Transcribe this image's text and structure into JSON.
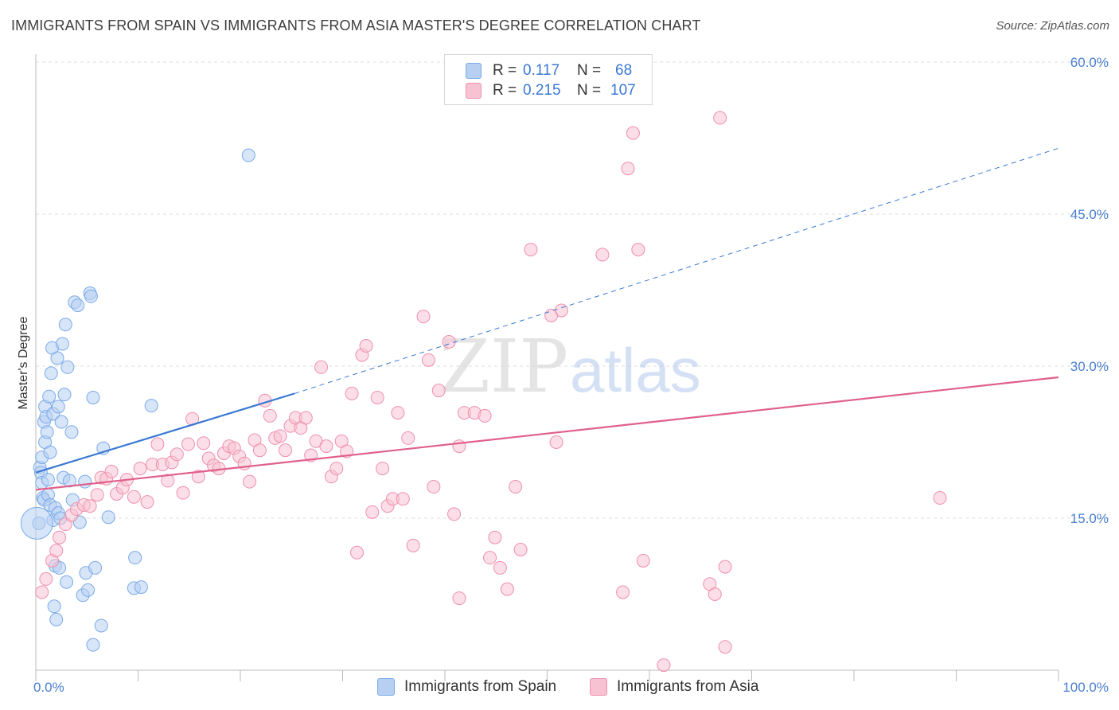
{
  "header": {
    "title": "IMMIGRANTS FROM SPAIN VS IMMIGRANTS FROM ASIA MASTER'S DEGREE CORRELATION CHART",
    "source": "Source: ZipAtlas.com"
  },
  "watermark": {
    "zip": "ZIP",
    "atlas": "atlas"
  },
  "legend": {
    "rows": [
      {
        "r_label": "R =",
        "r_value": "0.117",
        "n_label": "N =",
        "n_value": "68",
        "color": "#7aaae8",
        "fill": "#b7d0f2"
      },
      {
        "r_label": "R =",
        "r_value": "0.215",
        "n_label": "N =",
        "n_value": "107",
        "color": "#ee90ac",
        "fill": "#f7c3d3"
      }
    ]
  },
  "bottom_legend": {
    "items": [
      {
        "label": "Immigrants from Spain",
        "color": "#7aaae8",
        "fill": "#b7d0f2"
      },
      {
        "label": "Immigrants from Asia",
        "color": "#ee90ac",
        "fill": "#f7c3d3"
      }
    ]
  },
  "chart_data": {
    "type": "scatter",
    "title": "IMMIGRANTS FROM SPAIN VS IMMIGRANTS FROM ASIA MASTER'S DEGREE CORRELATION CHART",
    "xlabel": "",
    "ylabel": "Master's Degree",
    "xlim": [
      0,
      100
    ],
    "ylim": [
      0,
      60
    ],
    "x_tick_labels": [
      "0.0%",
      "100.0%"
    ],
    "y_ticks": [
      15,
      30,
      45,
      60
    ],
    "y_tick_labels": [
      "15.0%",
      "30.0%",
      "45.0%",
      "60.0%"
    ],
    "grid": true,
    "series": [
      {
        "name": "Immigrants from Spain",
        "color": "#3a78d4",
        "fill": "#b7d0f2",
        "r": 0.117,
        "n": 68,
        "trend": {
          "x0": 0,
          "y0": 19.5,
          "x1": 25.3,
          "y1": 27.3,
          "dash_to_x": 100,
          "dash_to_y": 51.5
        },
        "points": [
          [
            0.3,
            14.5
          ],
          [
            0.4,
            20
          ],
          [
            0.5,
            19.5
          ],
          [
            0.6,
            21
          ],
          [
            0.6,
            18.5
          ],
          [
            0.7,
            17
          ],
          [
            0.8,
            16.8
          ],
          [
            0.8,
            24.5
          ],
          [
            0.9,
            26
          ],
          [
            0.9,
            22.5
          ],
          [
            1,
            25
          ],
          [
            1.1,
            23.5
          ],
          [
            1.2,
            17.3
          ],
          [
            1.2,
            18.8
          ],
          [
            1.3,
            27
          ],
          [
            1.4,
            21.5
          ],
          [
            1.4,
            16.3
          ],
          [
            1.5,
            29.3
          ],
          [
            1.6,
            31.8
          ],
          [
            1.7,
            25.3
          ],
          [
            1.7,
            14.8
          ],
          [
            1.8,
            6.3
          ],
          [
            1.9,
            16
          ],
          [
            1.9,
            10.3
          ],
          [
            2,
            5
          ],
          [
            2.1,
            30.8
          ],
          [
            2.2,
            26
          ],
          [
            2.2,
            15.5
          ],
          [
            2.3,
            10.1
          ],
          [
            2.4,
            15
          ],
          [
            2.5,
            24.5
          ],
          [
            2.6,
            32.2
          ],
          [
            2.7,
            19
          ],
          [
            2.8,
            27.2
          ],
          [
            2.9,
            34.1
          ],
          [
            3,
            8.7
          ],
          [
            3.1,
            29.9
          ],
          [
            3.3,
            18.7
          ],
          [
            3.5,
            23.5
          ],
          [
            3.6,
            16.8
          ],
          [
            3.8,
            36.3
          ],
          [
            4.1,
            36
          ],
          [
            4.3,
            14.6
          ],
          [
            4.6,
            7.4
          ],
          [
            4.8,
            18.6
          ],
          [
            4.9,
            9.6
          ],
          [
            5.1,
            7.9
          ],
          [
            5.3,
            37.2
          ],
          [
            5.4,
            36.9
          ],
          [
            5.6,
            26.9
          ],
          [
            5.8,
            10.1
          ],
          [
            6.4,
            4.4
          ],
          [
            6.6,
            21.9
          ],
          [
            7.1,
            15.1
          ],
          [
            9.6,
            8.1
          ],
          [
            9.7,
            11.1
          ],
          [
            10.3,
            8.2
          ],
          [
            11.3,
            26.1
          ],
          [
            20.8,
            50.8
          ],
          [
            5.6,
            2.5
          ]
        ],
        "radius": 8,
        "big_points": [
          [
            0.1,
            14.5,
            20
          ]
        ]
      },
      {
        "name": "Immigrants from Asia",
        "color": "#e0608a",
        "fill": "#f7c3d3",
        "r": 0.215,
        "n": 107,
        "trend": {
          "x0": 0,
          "y0": 17.8,
          "x1": 100,
          "y1": 28.9
        },
        "points": [
          [
            0.6,
            7.7
          ],
          [
            1,
            9
          ],
          [
            1.6,
            10.8
          ],
          [
            2,
            11.8
          ],
          [
            2.3,
            13.1
          ],
          [
            2.9,
            14.4
          ],
          [
            3.5,
            15.3
          ],
          [
            4,
            15.9
          ],
          [
            4.7,
            16.3
          ],
          [
            5.3,
            16.2
          ],
          [
            6,
            17.3
          ],
          [
            6.4,
            19
          ],
          [
            6.9,
            18.9
          ],
          [
            7.4,
            19.6
          ],
          [
            7.9,
            17.4
          ],
          [
            8.5,
            18
          ],
          [
            8.9,
            18.8
          ],
          [
            9.6,
            17.1
          ],
          [
            10.2,
            19.9
          ],
          [
            10.9,
            16.6
          ],
          [
            11.4,
            20.3
          ],
          [
            11.9,
            22.3
          ],
          [
            12.4,
            20.3
          ],
          [
            12.9,
            18.7
          ],
          [
            13.3,
            20.5
          ],
          [
            13.8,
            21.3
          ],
          [
            14.4,
            17.5
          ],
          [
            14.9,
            22.3
          ],
          [
            15.3,
            24.8
          ],
          [
            15.9,
            19.1
          ],
          [
            16.4,
            22.4
          ],
          [
            16.9,
            20.9
          ],
          [
            17.4,
            20.2
          ],
          [
            17.9,
            19.9
          ],
          [
            18.4,
            21.4
          ],
          [
            18.9,
            22.1
          ],
          [
            19.4,
            21.9
          ],
          [
            19.9,
            21.1
          ],
          [
            20.4,
            20.4
          ],
          [
            20.9,
            18.6
          ],
          [
            21.4,
            22.7
          ],
          [
            21.9,
            21.7
          ],
          [
            22.4,
            26.6
          ],
          [
            22.9,
            25.1
          ],
          [
            23.4,
            22.9
          ],
          [
            23.9,
            23.1
          ],
          [
            24.4,
            21.7
          ],
          [
            24.9,
            24.1
          ],
          [
            25.4,
            24.9
          ],
          [
            25.9,
            23.9
          ],
          [
            26.4,
            24.9
          ],
          [
            26.9,
            21.2
          ],
          [
            27.4,
            22.6
          ],
          [
            27.9,
            29.9
          ],
          [
            28.4,
            22.1
          ],
          [
            28.9,
            19.1
          ],
          [
            29.4,
            19.9
          ],
          [
            29.9,
            22.6
          ],
          [
            30.4,
            21.6
          ],
          [
            30.9,
            27.3
          ],
          [
            31.4,
            11.6
          ],
          [
            31.9,
            31.1
          ],
          [
            32.3,
            32
          ],
          [
            32.9,
            15.6
          ],
          [
            33.4,
            26.9
          ],
          [
            33.9,
            19.9
          ],
          [
            34.4,
            16.2
          ],
          [
            34.9,
            16.9
          ],
          [
            35.4,
            25.4
          ],
          [
            35.9,
            16.9
          ],
          [
            36.4,
            22.9
          ],
          [
            36.9,
            12.3
          ],
          [
            37.9,
            34.9
          ],
          [
            38.4,
            30.6
          ],
          [
            38.9,
            18.1
          ],
          [
            39.4,
            27.6
          ],
          [
            40.4,
            32.4
          ],
          [
            40.9,
            15.4
          ],
          [
            41.4,
            22.1
          ],
          [
            41.9,
            25.4
          ],
          [
            41.4,
            7.1
          ],
          [
            42.9,
            25.4
          ],
          [
            43.9,
            25.1
          ],
          [
            44.4,
            11.1
          ],
          [
            44.9,
            13.1
          ],
          [
            45.4,
            10.1
          ],
          [
            46.1,
            8
          ],
          [
            46.9,
            18.1
          ],
          [
            47.4,
            11.9
          ],
          [
            48.4,
            41.5
          ],
          [
            50.4,
            35
          ],
          [
            50.9,
            22.5
          ],
          [
            51.4,
            35.5
          ],
          [
            55.4,
            41
          ],
          [
            57.4,
            7.7
          ],
          [
            57.9,
            49.5
          ],
          [
            58.4,
            53
          ],
          [
            58.9,
            41.5
          ],
          [
            59.4,
            10.8
          ],
          [
            61.4,
            0.5
          ],
          [
            65.9,
            8.5
          ],
          [
            66.4,
            7.5
          ],
          [
            66.9,
            54.5
          ],
          [
            67.4,
            2.3
          ],
          [
            67.4,
            10.2
          ],
          [
            88.4,
            17
          ]
        ],
        "radius": 8,
        "big_points": []
      }
    ]
  }
}
